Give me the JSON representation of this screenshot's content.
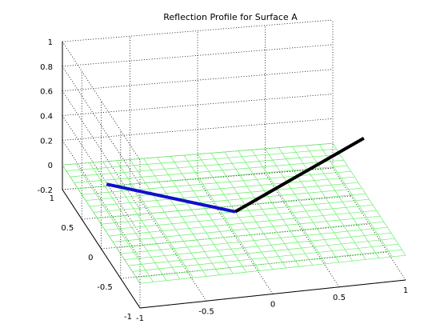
{
  "chart_data": {
    "type": "3d-line-surface",
    "title": "Reflection Profile for Surface A",
    "xlabel": "",
    "ylabel": "",
    "zlabel": "",
    "xlim": [
      -1,
      1
    ],
    "ylim": [
      -1,
      1
    ],
    "zlim": [
      -0.2,
      1
    ],
    "x_ticks": [
      "-1",
      "-0.5",
      "0",
      "0.5",
      "1"
    ],
    "y_ticks": [
      "-1",
      "-0.5",
      "0",
      "0.5",
      "1"
    ],
    "z_ticks": [
      "-0.2",
      "0",
      "0.2",
      "0.4",
      "0.6",
      "0.8",
      "1"
    ],
    "grid": true,
    "surface": {
      "x_range": [
        -1,
        1
      ],
      "y_range": [
        -1,
        1
      ],
      "z": 0,
      "divisions": 20,
      "color": "#66ee66"
    },
    "series": [
      {
        "points": [
          [
            -0.96,
            0.0,
            0.32
          ],
          [
            0.0,
            0.0,
            0.0
          ]
        ],
        "color": "#1010cc"
      },
      {
        "points": [
          [
            0.0,
            0.0,
            0.0
          ],
          [
            0.96,
            0.0,
            0.5
          ]
        ],
        "color": "#000000"
      }
    ]
  }
}
